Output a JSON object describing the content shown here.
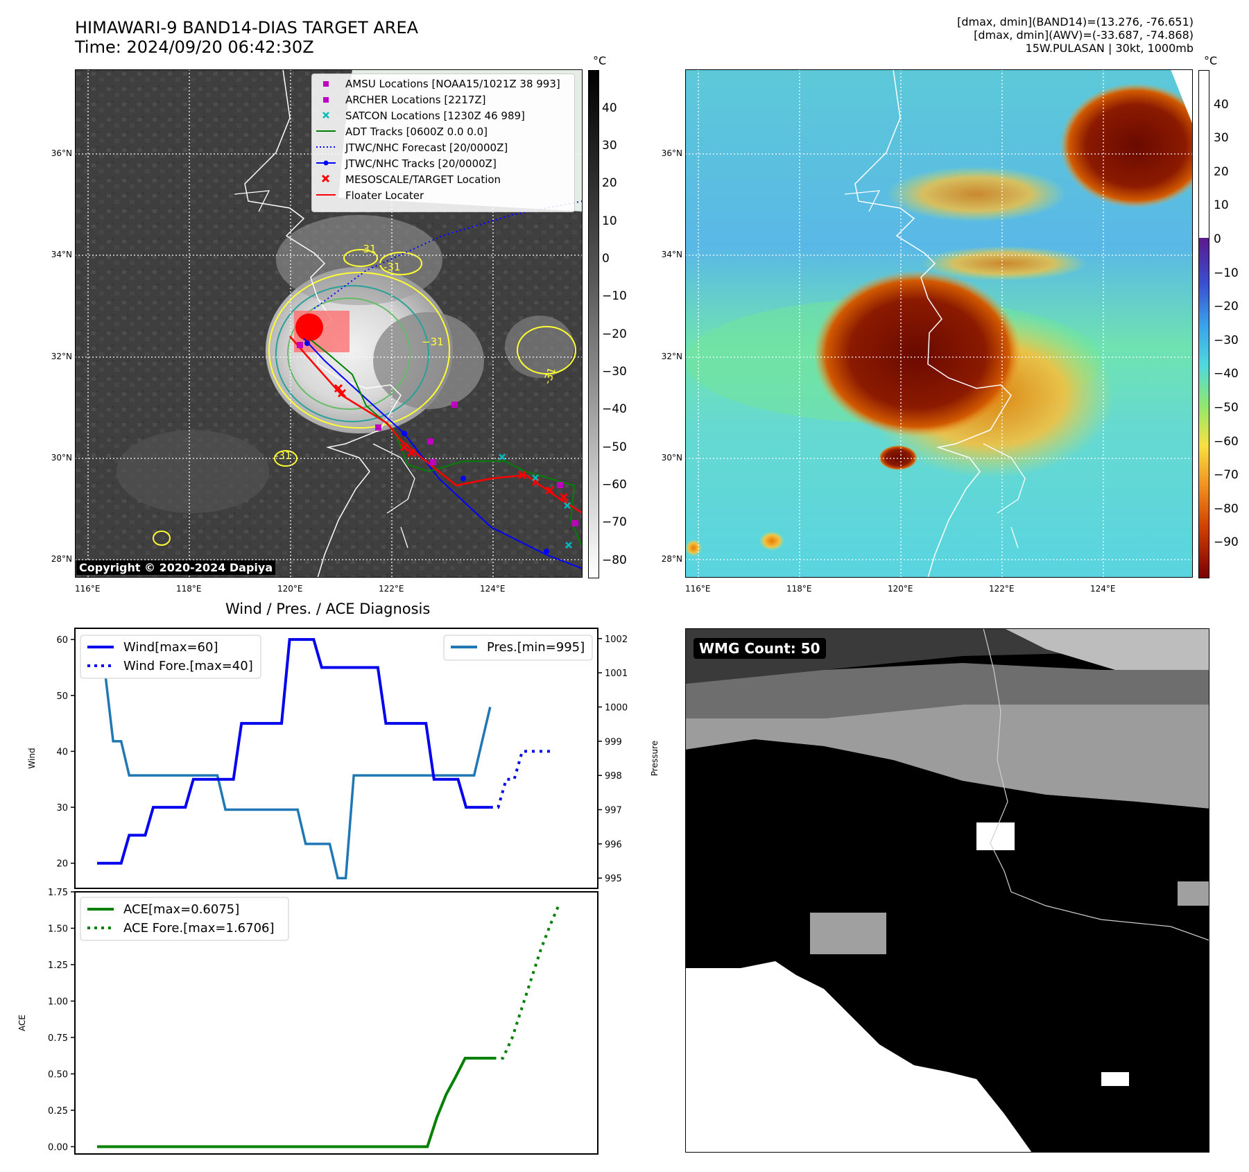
{
  "header": {
    "title_line1": "HIMAWARI-9 BAND14-DIAS TARGET AREA",
    "title_line2": "Time: 2024/09/20 06:42:30Z",
    "stats_line1": "[dmax, dmin](BAND14)=(13.276, -76.651)",
    "stats_line2": "[dmax, dmin](AWV)=(-33.687, -74.868)",
    "stats_line3": "15W.PULASAN | 30kt, 1000mb"
  },
  "map_ir": {
    "colorbar_unit": "°C",
    "colorbar_ticks": [
      "40",
      "30",
      "20",
      "10",
      "0",
      "−10",
      "−20",
      "−30",
      "−40",
      "−50",
      "−60",
      "−70",
      "−80"
    ],
    "lat_labels": [
      "36°N",
      "34°N",
      "32°N",
      "30°N",
      "28°N"
    ],
    "lon_labels": [
      "116°E",
      "118°E",
      "120°E",
      "122°E",
      "124°E"
    ],
    "contour_labels": [
      "-31",
      "-31",
      "−31",
      "-31",
      "-31"
    ],
    "copyright": "Copyright © 2020-2024 Dapiya",
    "legend": [
      {
        "label": "AMSU Locations [NOAA15/1021Z 38 993]",
        "color": "#c000c0",
        "symbol": "square"
      },
      {
        "label": "ARCHER Locations [2217Z]",
        "color": "#c000c0",
        "symbol": "square"
      },
      {
        "label": "SATCON Locations [1230Z 46 989]",
        "color": "#00bcbc",
        "symbol": "x"
      },
      {
        "label": "ADT Tracks [0600Z 0.0 0.0]",
        "color": "#008000",
        "symbol": "line"
      },
      {
        "label": "JTWC/NHC Forecast [20/0000Z]",
        "color": "#0000ff",
        "symbol": "dotted"
      },
      {
        "label": "JTWC/NHC Tracks [20/0000Z]",
        "color": "#0000ff",
        "symbol": "line-dot"
      },
      {
        "label": "MESOSCALE/TARGET Location",
        "color": "#ff0000",
        "symbol": "x"
      },
      {
        "label": "Floater Locater",
        "color": "#ff0000",
        "symbol": "line"
      }
    ]
  },
  "map_awv": {
    "colorbar_unit": "°C",
    "colorbar_ticks": [
      "40",
      "30",
      "20",
      "10",
      "0",
      "−10",
      "−20",
      "−30",
      "−40",
      "−50",
      "−60",
      "−70",
      "−80",
      "−90"
    ],
    "lat_labels": [
      "36°N",
      "34°N",
      "32°N",
      "30°N",
      "28°N"
    ],
    "lon_labels": [
      "116°E",
      "118°E",
      "120°E",
      "122°E",
      "124°E"
    ]
  },
  "wmg": {
    "label": "WMG Count: 50"
  },
  "chart_data": [
    {
      "type": "line",
      "title": "Wind / Pres. / ACE Diagnosis",
      "ylabel": "Wind",
      "ylabel_right": "Pressure",
      "ylim": [
        15.5,
        62
      ],
      "ylim_right": [
        994.7,
        1002.3
      ],
      "yticks": [
        20,
        30,
        40,
        50,
        60
      ],
      "yticks_right": [
        995,
        996,
        997,
        998,
        999,
        1000,
        1001,
        1002
      ],
      "legend_left": [
        "Wind[max=60]",
        "Wind Fore.[max=40]"
      ],
      "legend_right": [
        "Pres.[min=995]"
      ],
      "series": [
        {
          "name": "Wind[max=60]",
          "axis": "left",
          "style": "solid",
          "color": "#0000ee",
          "values": [
            20,
            20,
            20,
            20,
            25,
            25,
            25,
            30,
            30,
            30,
            30,
            30,
            35,
            35,
            35,
            35,
            35,
            35,
            45,
            45,
            45,
            45,
            45,
            45,
            60,
            60,
            60,
            60,
            55,
            55,
            55,
            55,
            55,
            55,
            55,
            55,
            45,
            45,
            45,
            45,
            45,
            45,
            35,
            35,
            35,
            35,
            30,
            30,
            30,
            30
          ]
        },
        {
          "name": "Wind Fore.[max=40]",
          "axis": "left",
          "style": "dotted",
          "color": "#0000ee",
          "values": [
            30,
            30,
            35,
            35,
            40,
            40,
            40,
            40,
            40
          ]
        },
        {
          "name": "Pres.[min=995]",
          "axis": "right",
          "style": "solid",
          "color": "#1f77b4",
          "values": [
            1002,
            1001,
            999,
            999,
            998,
            998,
            998,
            998,
            998,
            998,
            998,
            998,
            998,
            998,
            998,
            998,
            997,
            997,
            997,
            997,
            997,
            997,
            997,
            997,
            997,
            997,
            996,
            996,
            996,
            996,
            995,
            995,
            998,
            998,
            998,
            998,
            998,
            998,
            998,
            998,
            998,
            998,
            998,
            998,
            998,
            998,
            998,
            998,
            999,
            1000
          ]
        }
      ]
    },
    {
      "type": "line",
      "ylabel": "ACE",
      "ylim": [
        -0.05,
        1.75
      ],
      "yticks": [
        0.0,
        0.25,
        0.5,
        0.75,
        1.0,
        1.25,
        1.5,
        1.75
      ],
      "ytick_labels": [
        "0.00",
        "0.25",
        "0.50",
        "0.75",
        "1.00",
        "1.25",
        "1.50",
        "1.75"
      ],
      "legend": [
        "ACE[max=0.6075]",
        "ACE Fore.[max=1.6706]"
      ],
      "series": [
        {
          "name": "ACE[max=0.6075]",
          "style": "solid",
          "color": "#008000",
          "values": [
            0,
            0,
            0,
            0,
            0,
            0,
            0,
            0,
            0,
            0,
            0,
            0,
            0,
            0,
            0,
            0,
            0,
            0,
            0,
            0,
            0,
            0,
            0,
            0,
            0,
            0,
            0,
            0,
            0,
            0,
            0,
            0,
            0,
            0,
            0,
            0,
            0.2,
            0.36,
            0.48,
            0.6075,
            0.6075,
            0.6075,
            0.6075
          ]
        },
        {
          "name": "ACE Fore.[max=1.6706]",
          "style": "dotted",
          "color": "#008000",
          "values": [
            0.6075,
            0.6075,
            0.75,
            0.95,
            1.15,
            1.35,
            1.52,
            1.6706
          ]
        }
      ]
    }
  ]
}
